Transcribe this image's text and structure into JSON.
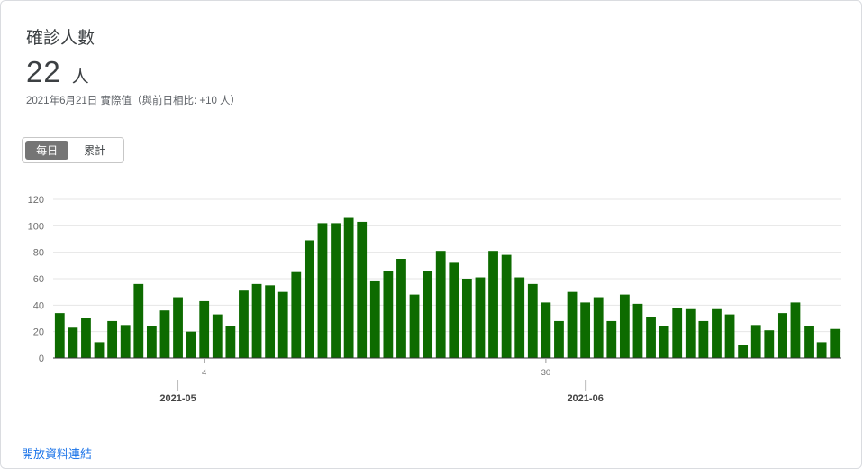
{
  "card": {
    "title": "確診人數",
    "big_value": "22",
    "big_unit": "人",
    "subline": "2021年6月21日 實際值（與前日相比: +10 人）"
  },
  "toggle": {
    "daily_label": "每日",
    "cumulative_label": "累計"
  },
  "footer": {
    "link_text": "開放資料連結"
  },
  "colors": {
    "bar": "#0d6b00",
    "grid": "#e6e6e6",
    "axis_text": "#6f6f6f"
  },
  "chart_data": {
    "type": "bar",
    "ylim": [
      0,
      120
    ],
    "yticks": [
      0,
      20,
      40,
      60,
      80,
      100,
      120
    ],
    "values": [
      34,
      23,
      30,
      12,
      28,
      25,
      56,
      24,
      36,
      46,
      20,
      43,
      33,
      24,
      51,
      56,
      55,
      50,
      65,
      89,
      102,
      102,
      106,
      103,
      58,
      66,
      75,
      48,
      66,
      81,
      72,
      60,
      61,
      81,
      78,
      61,
      56,
      42,
      28,
      50,
      42,
      46,
      28,
      48,
      41,
      31,
      24,
      38,
      37,
      28,
      37,
      33,
      10,
      25,
      21,
      34,
      42,
      24,
      12,
      22
    ],
    "tick_labels": [
      {
        "index": 11,
        "label": "4"
      },
      {
        "index": 37,
        "label": "30"
      }
    ],
    "month_labels": [
      {
        "index": 9,
        "label": "2021-05"
      },
      {
        "index": 40,
        "label": "2021-06"
      }
    ]
  }
}
